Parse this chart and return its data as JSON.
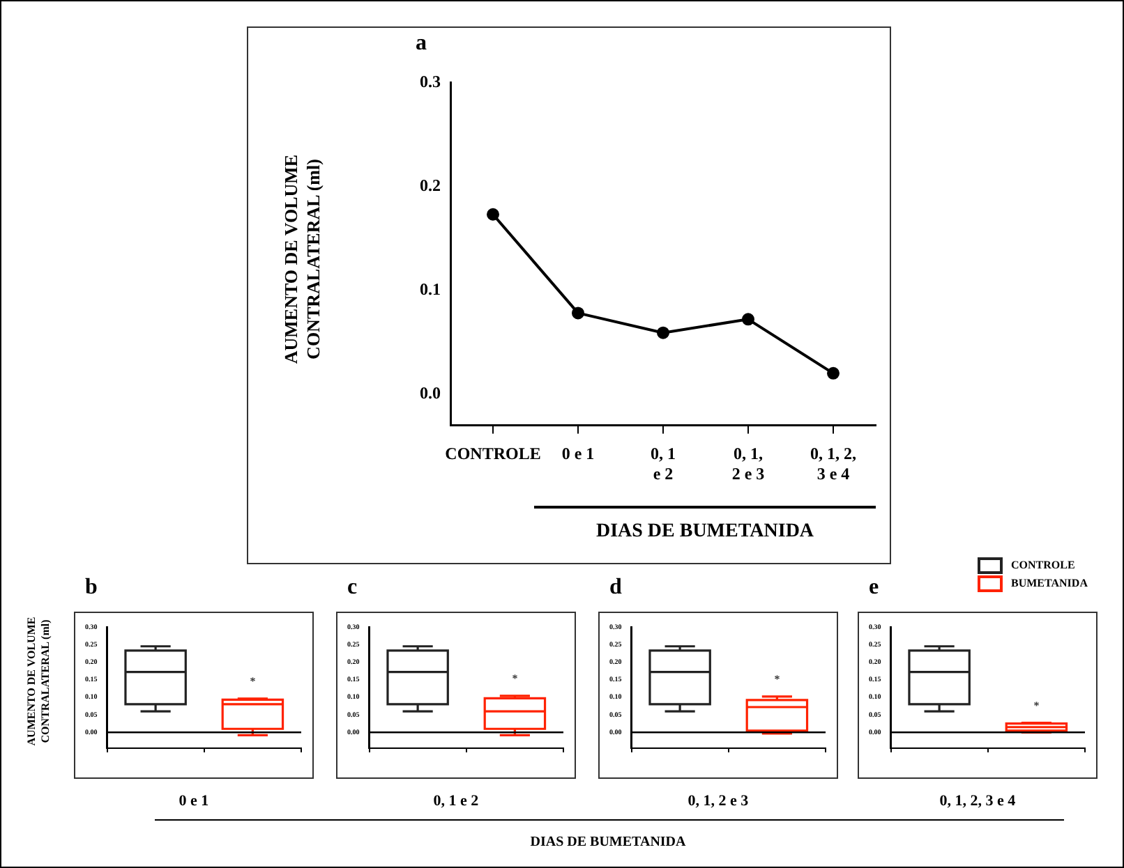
{
  "chart_data": [
    {
      "type": "line",
      "title": "a",
      "ylabel": "AUMENTO DE VOLUME CONTRALATERAL  (ml)",
      "xlabel": "DIAS DE BUMETANIDA",
      "categories": [
        "CONTROLE",
        "0 e 1",
        "0, 1\ne 2",
        "0, 1,\n2 e 3",
        "0, 1, 2,\n3 e 4"
      ],
      "series": [
        {
          "color": "#000000",
          "values": [
            0.173,
            0.078,
            0.059,
            0.072,
            0.02
          ]
        }
      ],
      "ylim": [
        -0.03,
        0.3
      ],
      "yticks": [
        {
          "value": 0,
          "label": "0.0"
        },
        {
          "value": 0.1,
          "label": "0.1"
        },
        {
          "value": 0.2,
          "label": "0.2"
        },
        {
          "value": 0.3,
          "label": "0.3"
        }
      ],
      "marker": "circle",
      "grid": false,
      "legend": false
    },
    {
      "type": "box",
      "title": "b",
      "xlabel": "0 e 1",
      "ylabel": "AUMENTO DE VOLUME CONTRALATERAL (ml)",
      "categories": [
        null,
        null
      ],
      "series": [
        {
          "color": "#222222",
          "boxes": [
            {
              "low": 0.06,
              "q1": 0.08,
              "median": 0.172,
              "q3": 0.233,
              "high": 0.245
            },
            null
          ]
        },
        {
          "color": "#ff2200",
          "boxes": [
            null,
            {
              "low": -0.008,
              "q1": 0.01,
              "median": 0.08,
              "q3": 0.093,
              "high": 0.096
            }
          ]
        }
      ],
      "ylim": [
        -0.045,
        0.3
      ],
      "yticks": [
        {
          "value": 0,
          "label": "0.00"
        },
        {
          "value": 0.05,
          "label": "0.05"
        },
        {
          "value": 0.1,
          "label": "0.10"
        },
        {
          "value": 0.15,
          "label": "0.15"
        },
        {
          "value": 0.2,
          "label": "0.20"
        },
        {
          "value": 0.25,
          "label": "0.25"
        },
        {
          "value": 0.3,
          "label": "0.30"
        }
      ],
      "ref_lines": [
        {
          "axis": "y",
          "value": 0
        }
      ],
      "annotations": [
        "*",
        "DIAS DE BUMETANIDA"
      ],
      "grid": false,
      "legend": false
    },
    {
      "type": "box",
      "title": "c",
      "xlabel": "0, 1 e 2",
      "categories": [
        null,
        null
      ],
      "series": [
        {
          "color": "#222222",
          "boxes": [
            {
              "low": 0.06,
              "q1": 0.08,
              "median": 0.172,
              "q3": 0.233,
              "high": 0.245
            },
            null
          ]
        },
        {
          "color": "#ff2200",
          "boxes": [
            null,
            {
              "low": -0.008,
              "q1": 0.01,
              "median": 0.06,
              "q3": 0.097,
              "high": 0.104
            }
          ]
        }
      ],
      "ylim": [
        -0.045,
        0.3
      ],
      "yticks": [
        {
          "value": 0,
          "label": "0.00"
        },
        {
          "value": 0.05,
          "label": "0.05"
        },
        {
          "value": 0.1,
          "label": "0.10"
        },
        {
          "value": 0.15,
          "label": "0.15"
        },
        {
          "value": 0.2,
          "label": "0.20"
        },
        {
          "value": 0.25,
          "label": "0.25"
        },
        {
          "value": 0.3,
          "label": "0.30"
        }
      ],
      "ref_lines": [
        {
          "axis": "y",
          "value": 0
        }
      ],
      "annotations": [
        "*"
      ],
      "grid": false,
      "legend": false
    },
    {
      "type": "box",
      "title": "d",
      "xlabel": "0, 1, 2 e 3",
      "categories": [
        null,
        null
      ],
      "series": [
        {
          "color": "#222222",
          "boxes": [
            {
              "low": 0.06,
              "q1": 0.08,
              "median": 0.172,
              "q3": 0.233,
              "high": 0.245
            },
            null
          ]
        },
        {
          "color": "#ff2200",
          "boxes": [
            null,
            {
              "low": -0.003,
              "q1": 0.005,
              "median": 0.072,
              "q3": 0.092,
              "high": 0.102
            }
          ]
        }
      ],
      "ylim": [
        -0.045,
        0.3
      ],
      "yticks": [
        {
          "value": 0,
          "label": "0.00"
        },
        {
          "value": 0.05,
          "label": "0.05"
        },
        {
          "value": 0.1,
          "label": "0.10"
        },
        {
          "value": 0.15,
          "label": "0.15"
        },
        {
          "value": 0.2,
          "label": "0.20"
        },
        {
          "value": 0.25,
          "label": "0.25"
        },
        {
          "value": 0.3,
          "label": "0.30"
        }
      ],
      "ref_lines": [
        {
          "axis": "y",
          "value": 0
        }
      ],
      "annotations": [
        "*"
      ],
      "grid": false,
      "legend": false
    },
    {
      "type": "box",
      "title": "e",
      "xlabel": "0, 1, 2, 3 e 4",
      "categories": [
        null,
        null
      ],
      "series": [
        {
          "name": "CONTROLE",
          "color": "#222222",
          "boxes": [
            {
              "low": 0.06,
              "q1": 0.08,
              "median": 0.172,
              "q3": 0.233,
              "high": 0.245
            },
            null
          ]
        },
        {
          "name": "BUMETANIDA",
          "color": "#ff2200",
          "boxes": [
            null,
            {
              "low": 0.0,
              "q1": 0.005,
              "median": 0.015,
              "q3": 0.025,
              "high": 0.027
            }
          ]
        }
      ],
      "ylim": [
        -0.045,
        0.3
      ],
      "yticks": [
        {
          "value": 0,
          "label": "0.00"
        },
        {
          "value": 0.05,
          "label": "0.05"
        },
        {
          "value": 0.1,
          "label": "0.10"
        },
        {
          "value": 0.15,
          "label": "0.15"
        },
        {
          "value": 0.2,
          "label": "0.20"
        },
        {
          "value": 0.25,
          "label": "0.25"
        },
        {
          "value": 0.3,
          "label": "0.30"
        }
      ],
      "ref_lines": [
        {
          "axis": "y",
          "value": 0
        }
      ],
      "annotations": [
        "*"
      ],
      "grid": false,
      "legend": "top right"
    }
  ]
}
